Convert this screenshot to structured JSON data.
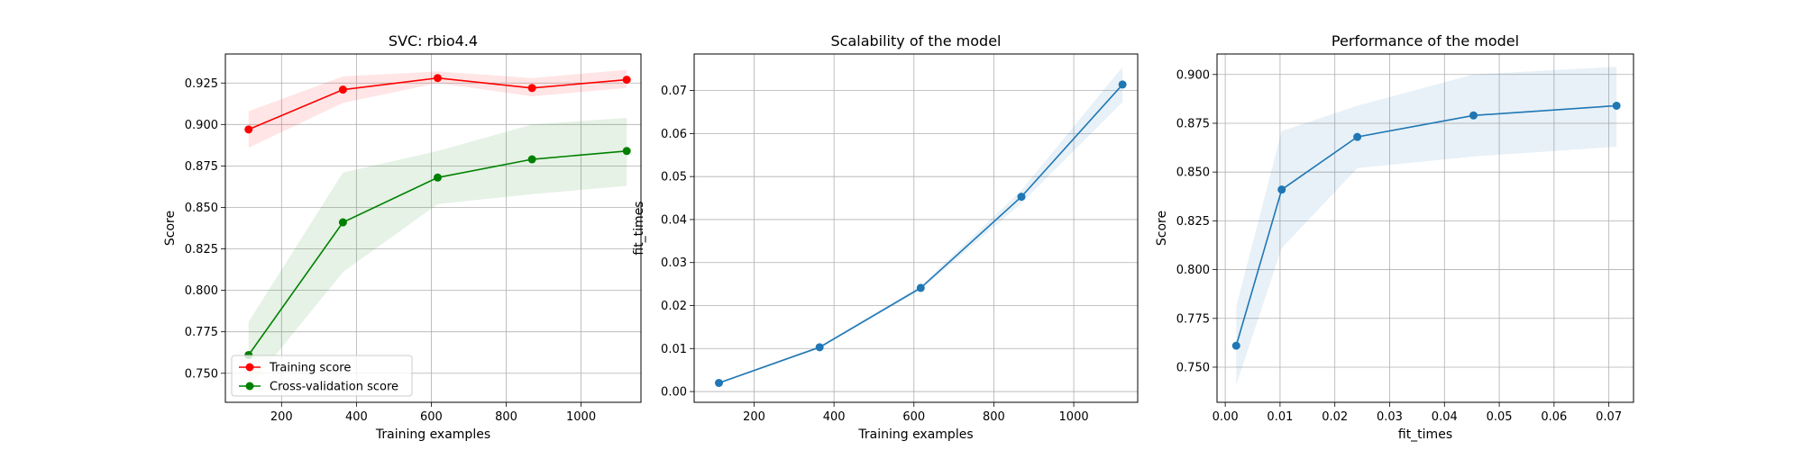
{
  "colors": {
    "training": "#d62728",
    "training_line": "#ff0000",
    "cv": "#008000",
    "blue": "#1f77b4",
    "band_training": "#ff0000",
    "band_cv": "#008000",
    "band_blue": "#1f77b4",
    "grid": "#b0b0b0"
  },
  "chart_data": [
    {
      "type": "line",
      "title": "SVC: rbio4.4",
      "xlabel": "Training examples",
      "ylabel": "Score",
      "xlim": [
        50,
        1160
      ],
      "ylim": [
        0.7325,
        0.9425
      ],
      "xticks": [
        200,
        400,
        600,
        800,
        1000
      ],
      "yticks": [
        0.75,
        0.775,
        0.8,
        0.825,
        0.85,
        0.875,
        0.9,
        0.925
      ],
      "ytick_decimals": 3,
      "grid": true,
      "legend_position": "lower-left",
      "x": [
        112,
        364,
        617,
        869,
        1122
      ],
      "series": [
        {
          "name": "Training score",
          "color_key": "training_line",
          "values": [
            0.897,
            0.921,
            0.928,
            0.922,
            0.927
          ],
          "upper": [
            0.908,
            0.929,
            0.932,
            0.928,
            0.933
          ],
          "lower": [
            0.886,
            0.913,
            0.925,
            0.917,
            0.922
          ]
        },
        {
          "name": "Cross-validation score",
          "color_key": "cv",
          "values": [
            0.761,
            0.841,
            0.868,
            0.879,
            0.884
          ],
          "upper": [
            0.781,
            0.871,
            0.884,
            0.9,
            0.904
          ],
          "lower": [
            0.741,
            0.811,
            0.852,
            0.858,
            0.863
          ]
        }
      ]
    },
    {
      "type": "line",
      "title": "Scalability of the model",
      "xlabel": "Training examples",
      "ylabel": "fit_times",
      "xlim": [
        50,
        1160
      ],
      "ylim": [
        -0.0025,
        0.0785
      ],
      "xticks": [
        200,
        400,
        600,
        800,
        1000
      ],
      "yticks": [
        0.0,
        0.01,
        0.02,
        0.03,
        0.04,
        0.05,
        0.06,
        0.07
      ],
      "ytick_decimals": 2,
      "grid": true,
      "x": [
        112,
        364,
        617,
        869,
        1122
      ],
      "series": [
        {
          "color_key": "blue",
          "values": [
            0.002,
            0.0103,
            0.0241,
            0.0453,
            0.0714
          ],
          "upper": [
            0.0022,
            0.0106,
            0.0246,
            0.0468,
            0.0755
          ],
          "lower": [
            0.0018,
            0.01,
            0.0236,
            0.0438,
            0.0673
          ]
        }
      ]
    },
    {
      "type": "line",
      "title": "Performance of the model",
      "xlabel": "fit_times",
      "ylabel": "Score",
      "xlim": [
        -0.0015,
        0.0745
      ],
      "ylim": [
        0.732,
        0.9105
      ],
      "xticks": [
        0.0,
        0.01,
        0.02,
        0.03,
        0.04,
        0.05,
        0.06,
        0.07
      ],
      "xtick_decimals": 2,
      "yticks": [
        0.75,
        0.775,
        0.8,
        0.825,
        0.85,
        0.875,
        0.9
      ],
      "ytick_decimals": 3,
      "grid": true,
      "x": [
        0.002,
        0.0103,
        0.0241,
        0.0453,
        0.0714
      ],
      "series": [
        {
          "color_key": "blue",
          "values": [
            0.761,
            0.841,
            0.868,
            0.879,
            0.884
          ],
          "upper": [
            0.781,
            0.871,
            0.884,
            0.9,
            0.904
          ],
          "lower": [
            0.741,
            0.811,
            0.852,
            0.858,
            0.863
          ]
        }
      ]
    }
  ]
}
